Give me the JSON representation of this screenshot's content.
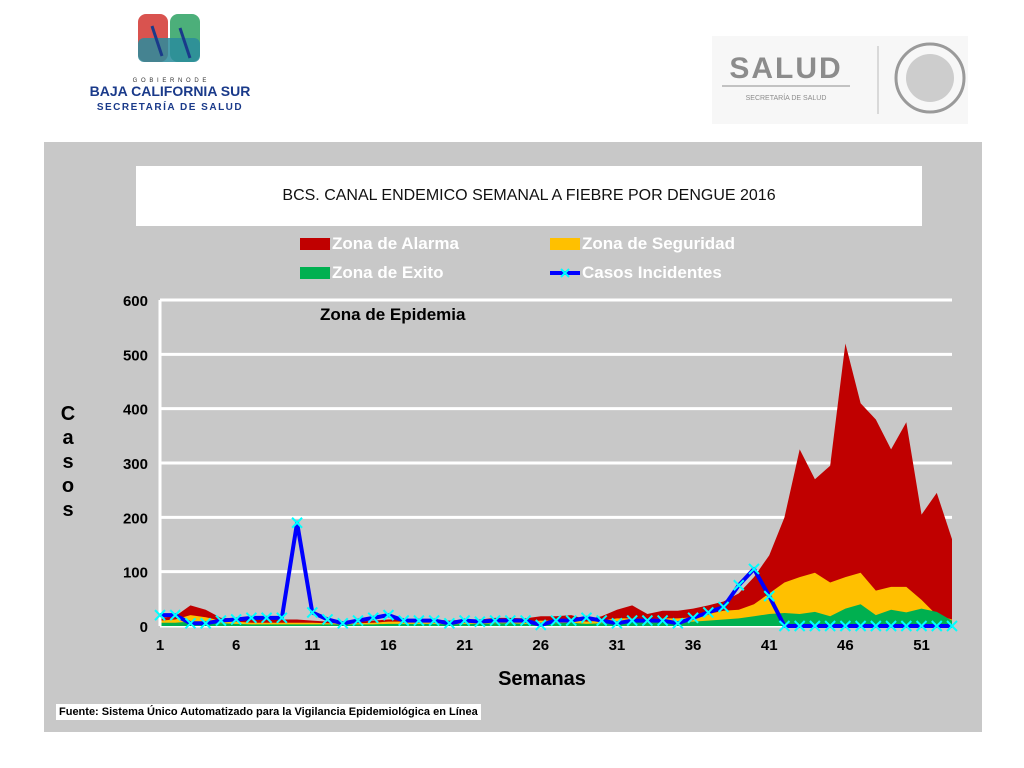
{
  "logos": {
    "left": {
      "line1": "G O B I E R N O   D E",
      "line2": "BAJA CALIFORNIA SUR",
      "line3": "SECRETARÍA DE SALUD"
    },
    "right": {
      "brand": "SALUD",
      "sub": "SECRETARÍA DE SALUD"
    }
  },
  "footnote": "Fuente: Sistema Único Automatizado para la Vigilancia Epidemiológica en Línea",
  "colors": {
    "alarma": "#c00000",
    "seguridad": "#ffc000",
    "exito": "#00b050",
    "casos": "#0000ff",
    "marker": "#00ffff",
    "panel": "#c8c8c8"
  },
  "chart_data": {
    "type": "area",
    "title": "BCS. CANAL ENDEMICO SEMANAL A FIEBRE POR DENGUE 2016",
    "xlabel": "Semanas",
    "ylabel": "Casos",
    "annotation": "Zona de Epidemia",
    "xlim": [
      1,
      53
    ],
    "ylim": [
      0,
      600
    ],
    "yticks": [
      0,
      100,
      200,
      300,
      400,
      500,
      600
    ],
    "xticks": [
      1,
      6,
      11,
      16,
      21,
      26,
      31,
      36,
      41,
      46,
      51
    ],
    "grid": true,
    "legend_position": "top",
    "x": [
      1,
      2,
      3,
      4,
      5,
      6,
      7,
      8,
      9,
      10,
      11,
      12,
      13,
      14,
      15,
      16,
      17,
      18,
      19,
      20,
      21,
      22,
      23,
      24,
      25,
      26,
      27,
      28,
      29,
      30,
      31,
      32,
      33,
      34,
      35,
      36,
      37,
      38,
      39,
      40,
      41,
      42,
      43,
      44,
      45,
      46,
      47,
      48,
      49,
      50,
      51,
      52,
      53
    ],
    "series": [
      {
        "name": "Zona de Alarma",
        "kind": "area",
        "values": [
          15,
          18,
          38,
          30,
          15,
          14,
          12,
          12,
          12,
          12,
          10,
          8,
          8,
          8,
          10,
          12,
          12,
          12,
          12,
          10,
          12,
          12,
          15,
          15,
          14,
          18,
          18,
          20,
          12,
          18,
          30,
          38,
          22,
          28,
          28,
          32,
          38,
          45,
          60,
          90,
          130,
          200,
          325,
          270,
          295,
          520,
          410,
          380,
          325,
          375,
          205,
          245,
          160
        ]
      },
      {
        "name": "Zona de Seguridad",
        "kind": "area",
        "values": [
          10,
          12,
          20,
          16,
          10,
          8,
          6,
          6,
          6,
          6,
          6,
          5,
          5,
          5,
          6,
          8,
          8,
          8,
          8,
          6,
          8,
          8,
          10,
          10,
          8,
          10,
          10,
          12,
          8,
          10,
          14,
          14,
          12,
          14,
          14,
          16,
          22,
          28,
          30,
          40,
          60,
          80,
          90,
          98,
          80,
          90,
          98,
          65,
          72,
          72,
          48,
          20,
          12
        ]
      },
      {
        "name": "Zona de Exito",
        "kind": "area",
        "values": [
          6,
          6,
          8,
          7,
          5,
          4,
          3,
          3,
          3,
          3,
          3,
          3,
          3,
          3,
          3,
          4,
          4,
          4,
          4,
          3,
          4,
          4,
          5,
          5,
          4,
          5,
          5,
          6,
          4,
          5,
          7,
          7,
          6,
          7,
          7,
          8,
          10,
          12,
          14,
          18,
          22,
          24,
          22,
          26,
          18,
          32,
          40,
          20,
          30,
          25,
          32,
          26,
          10
        ]
      },
      {
        "name": "Casos Incidentes",
        "kind": "line",
        "values": [
          20,
          20,
          5,
          5,
          10,
          12,
          15,
          15,
          15,
          190,
          25,
          12,
          5,
          10,
          15,
          20,
          10,
          10,
          10,
          5,
          10,
          8,
          10,
          10,
          10,
          2,
          10,
          10,
          15,
          10,
          5,
          10,
          10,
          10,
          5,
          15,
          25,
          35,
          75,
          105,
          55,
          0,
          0,
          0,
          0,
          0,
          0,
          0,
          0,
          0,
          0,
          0,
          0
        ]
      }
    ]
  }
}
